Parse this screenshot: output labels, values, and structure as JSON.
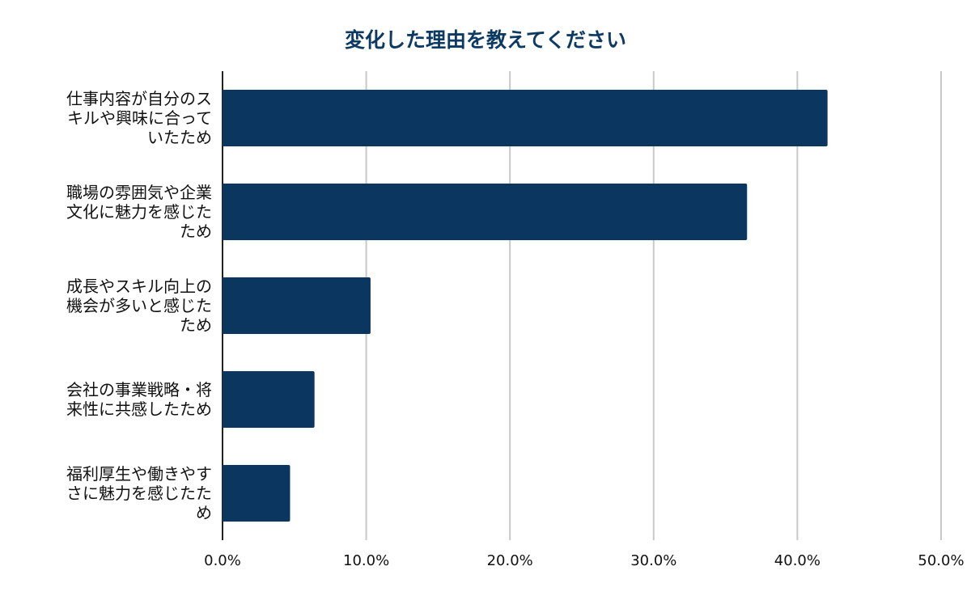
{
  "chart_data": {
    "type": "bar",
    "orientation": "horizontal",
    "title": "変化した理由を教えてください",
    "categories": [
      [
        "仕事内容が自分のス",
        "キルや興味に合って",
        "いたため"
      ],
      [
        "職場の雰囲気や企業",
        "文化に魅力を感じた",
        "ため"
      ],
      [
        "成長やスキル向上の",
        "機会が多いと感じた",
        "ため"
      ],
      [
        "会社の事業戦略・将",
        "来性に共感したため"
      ],
      [
        "福利厚生や働きやす",
        "さに魅力を感じたた",
        "め"
      ]
    ],
    "values": [
      42.1,
      36.5,
      10.3,
      6.4,
      4.7
    ],
    "xlim": [
      0,
      50
    ],
    "xticks": [
      "0.0%",
      "10.0%",
      "20.0%",
      "30.0%",
      "40.0%",
      "50.0%"
    ],
    "grid": true,
    "colors": {
      "bar": "#0b3660",
      "grid": "#c8c8c8",
      "axis": "#222222"
    }
  }
}
